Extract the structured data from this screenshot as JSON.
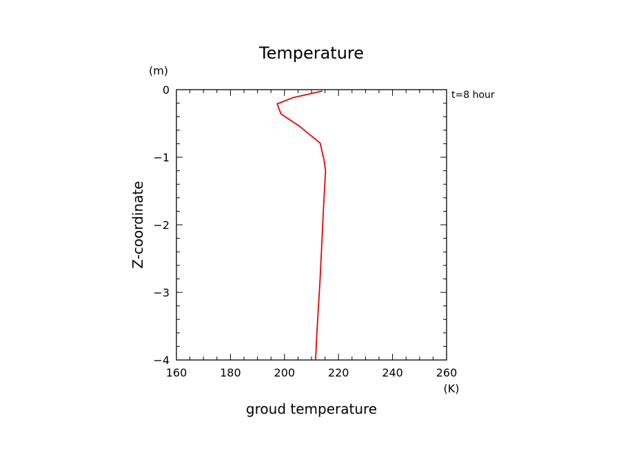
{
  "chart_data": {
    "type": "line",
    "title": "Temperature",
    "xlabel": "groud temperature",
    "ylabel": "Z-coordinate",
    "x_unit": "(K)",
    "y_unit": "(m)",
    "annotation": "t=8 hour",
    "xlim": [
      160,
      260
    ],
    "ylim": [
      -4,
      0
    ],
    "x_ticks": [
      160,
      180,
      200,
      220,
      240,
      260
    ],
    "y_ticks": [
      0,
      -1,
      -2,
      -3,
      -4
    ],
    "y_tick_labels": [
      "0",
      "−1",
      "−2",
      "−3",
      "−4"
    ],
    "grid": false,
    "series": [
      {
        "color": "#e60000",
        "points": [
          {
            "x": 214.0,
            "z": -0.02
          },
          {
            "x": 203.0,
            "z": -0.12
          },
          {
            "x": 197.3,
            "z": -0.21
          },
          {
            "x": 198.7,
            "z": -0.36
          },
          {
            "x": 205.5,
            "z": -0.54
          },
          {
            "x": 213.2,
            "z": -0.79
          },
          {
            "x": 214.6,
            "z": -1.03
          },
          {
            "x": 215.2,
            "z": -1.2
          },
          {
            "x": 214.4,
            "z": -1.8
          },
          {
            "x": 213.2,
            "z": -2.8
          },
          {
            "x": 212.0,
            "z": -3.6
          },
          {
            "x": 211.5,
            "z": -4.0
          }
        ]
      }
    ]
  }
}
